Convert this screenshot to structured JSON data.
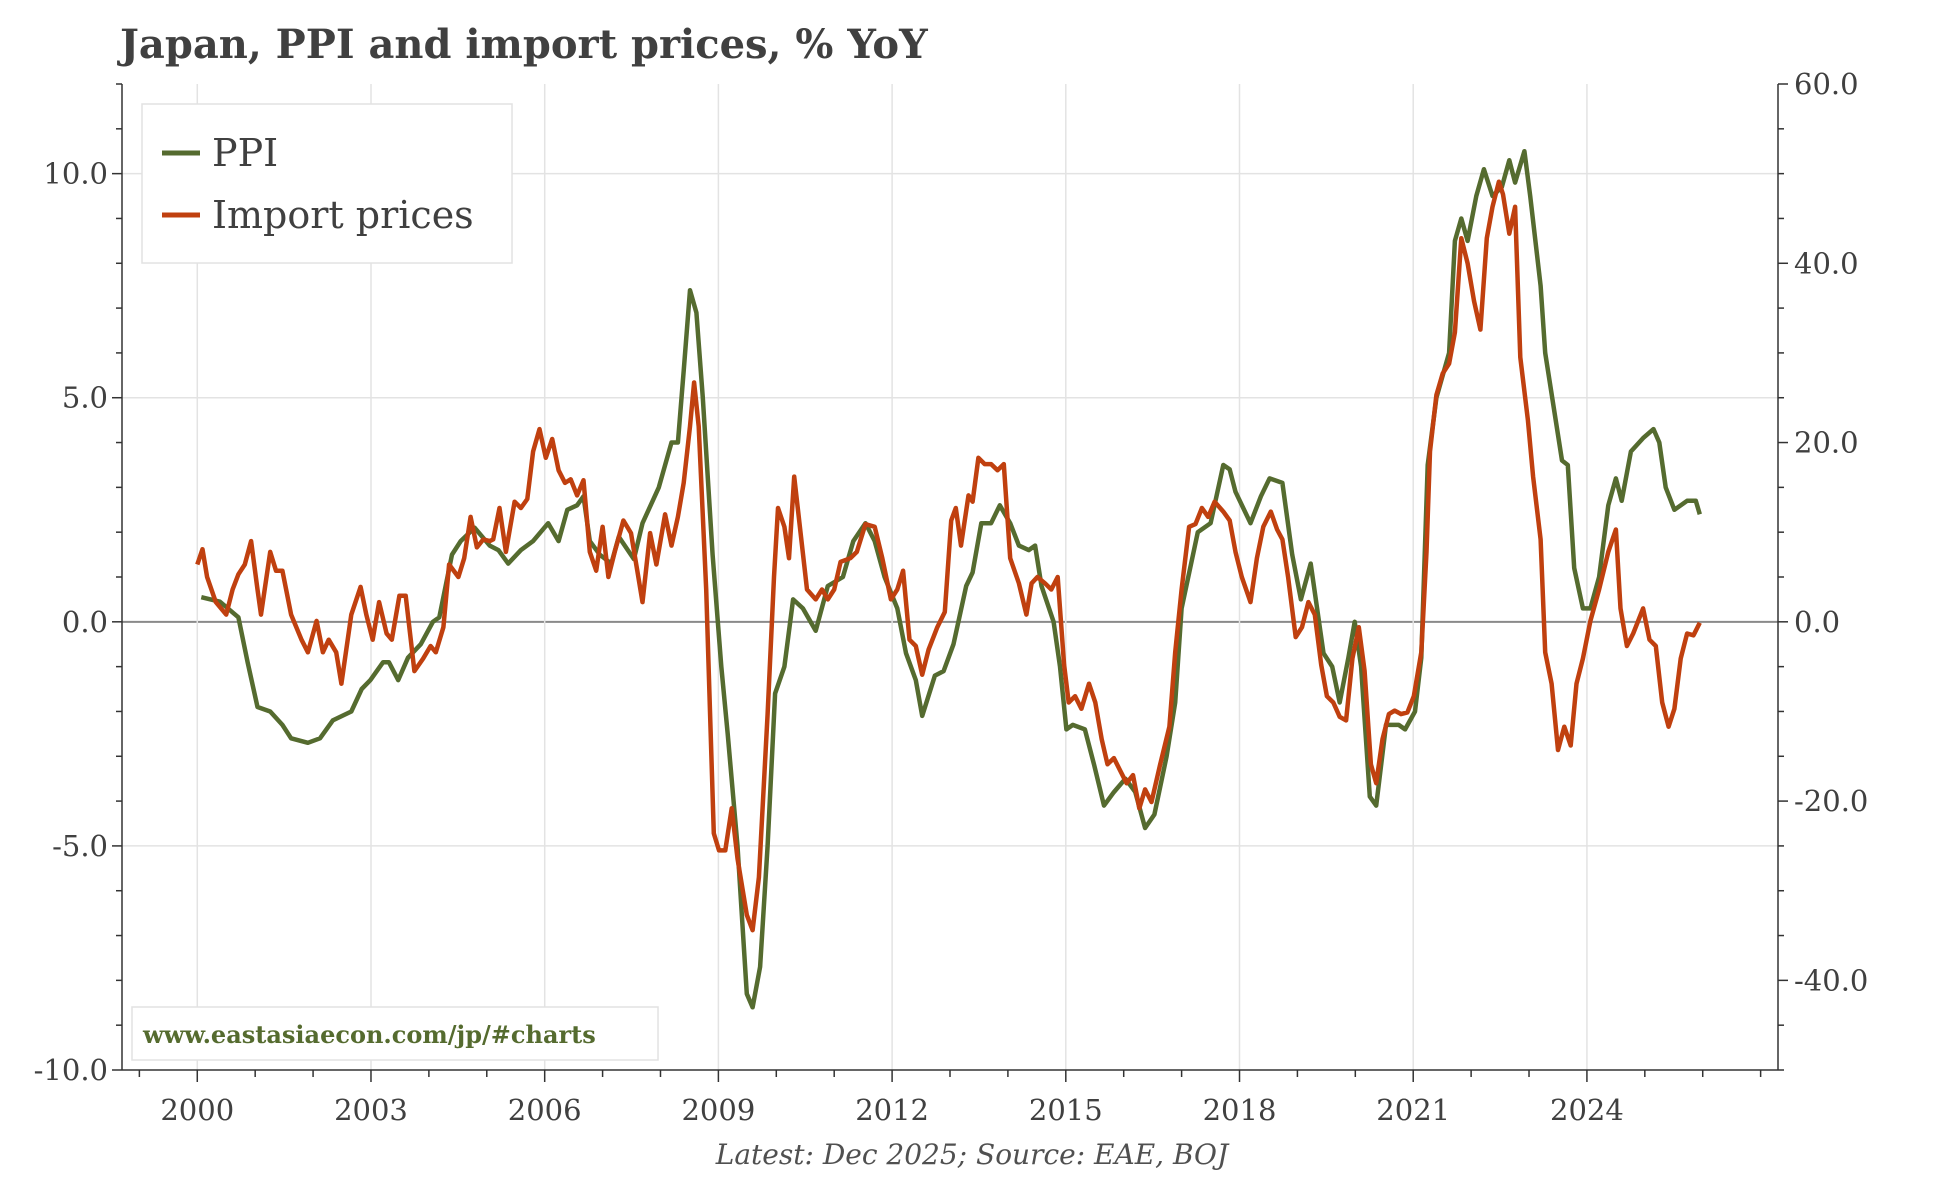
{
  "chart_data": {
    "type": "line",
    "title": "Japan, PPI and import prices, % YoY",
    "footnote": "Latest: Dec 2025; Source: EAE, BOJ",
    "watermark": "www.eastasiaecon.com/jp/#charts",
    "xlim": [
      1998.7,
      2027.3
    ],
    "x_ticks": [
      2000,
      2003,
      2006,
      2009,
      2012,
      2015,
      2018,
      2021,
      2024
    ],
    "x_tick_labels": [
      "2000",
      "2003",
      "2006",
      "2009",
      "2012",
      "2015",
      "2018",
      "2021",
      "2024"
    ],
    "left_axis": {
      "ylim": [
        -10,
        12
      ],
      "ticks": [
        10,
        5,
        0,
        -5,
        -10
      ],
      "tick_labels": [
        "10.0",
        "5.0",
        "0.0",
        "-5.0",
        "-10.0"
      ]
    },
    "right_axis": {
      "ylim": [
        -50,
        60
      ],
      "ticks": [
        60,
        40,
        20,
        0,
        -20,
        -40
      ],
      "tick_labels": [
        "60.0",
        "40.0",
        "20.0",
        "0.0",
        "-20.0",
        "-40.0"
      ]
    },
    "grid": true,
    "legend_position": "top-left",
    "series": [
      {
        "name": "PPI",
        "axis": "left",
        "color": "#556b2f",
        "x": [
          2000.07,
          2000.39,
          2000.71,
          2000.87,
          2001.04,
          2001.26,
          2001.47,
          2001.62,
          2001.91,
          2002.12,
          2002.34,
          2002.66,
          2002.84,
          2002.99,
          2003.21,
          2003.31,
          2003.47,
          2003.64,
          2003.86,
          2004.07,
          2004.18,
          2004.4,
          2004.55,
          2004.79,
          2005.05,
          2005.2,
          2005.37,
          2005.59,
          2005.8,
          2006.06,
          2006.24,
          2006.39,
          2006.56,
          2006.67,
          2006.78,
          2006.95,
          2007.15,
          2007.28,
          2007.54,
          2007.69,
          2007.97,
          2008.19,
          2008.3,
          2008.4,
          2008.51,
          2008.62,
          2008.73,
          2008.9,
          2009.05,
          2009.16,
          2009.33,
          2009.49,
          2009.59,
          2009.72,
          2009.85,
          2009.98,
          2010.14,
          2010.29,
          2010.46,
          2010.68,
          2010.89,
          2011.15,
          2011.33,
          2011.54,
          2011.7,
          2011.87,
          2012.09,
          2012.24,
          2012.41,
          2012.52,
          2012.74,
          2012.89,
          2013.06,
          2013.28,
          2013.39,
          2013.54,
          2013.71,
          2013.86,
          2014.04,
          2014.19,
          2014.36,
          2014.47,
          2014.58,
          2014.79,
          2014.9,
          2015.01,
          2015.12,
          2015.33,
          2015.49,
          2015.66,
          2015.83,
          2016.03,
          2016.2,
          2016.37,
          2016.53,
          2016.74,
          2016.89,
          2017.0,
          2017.28,
          2017.5,
          2017.72,
          2017.83,
          2017.93,
          2018.19,
          2018.37,
          2018.52,
          2018.74,
          2018.91,
          2019.06,
          2019.23,
          2019.45,
          2019.6,
          2019.73,
          2019.88,
          2019.99,
          2020.1,
          2020.25,
          2020.36,
          2020.53,
          2020.75,
          2020.86,
          2021.03,
          2021.14,
          2021.25,
          2021.4,
          2021.62,
          2021.72,
          2021.83,
          2021.94,
          2022.09,
          2022.22,
          2022.37,
          2022.53,
          2022.66,
          2022.76,
          2022.92,
          2023.02,
          2023.2,
          2023.28,
          2023.46,
          2023.57,
          2023.67,
          2023.78,
          2023.93,
          2024.06,
          2024.21,
          2024.37,
          2024.5,
          2024.6,
          2024.76,
          2024.97,
          2025.15,
          2025.25,
          2025.36,
          2025.51,
          2025.73,
          2025.88,
          2025.95
        ],
        "values": [
          0.55,
          0.45,
          0.1,
          -0.9,
          -1.9,
          -2.0,
          -2.3,
          -2.6,
          -2.7,
          -2.6,
          -2.2,
          -2.0,
          -1.5,
          -1.3,
          -0.9,
          -0.9,
          -1.3,
          -0.8,
          -0.5,
          0.0,
          0.1,
          1.5,
          1.8,
          2.1,
          1.7,
          1.6,
          1.3,
          1.6,
          1.8,
          2.2,
          1.8,
          2.5,
          2.6,
          2.8,
          1.8,
          1.5,
          1.3,
          1.9,
          1.4,
          2.2,
          3.0,
          4.0,
          4.0,
          5.6,
          7.4,
          6.9,
          5.0,
          1.5,
          -1.0,
          -2.5,
          -5.0,
          -8.3,
          -8.6,
          -7.7,
          -5.0,
          -1.6,
          -1.0,
          0.5,
          0.3,
          -0.2,
          0.8,
          1.0,
          1.8,
          2.2,
          1.8,
          1.0,
          0.3,
          -0.7,
          -1.3,
          -2.1,
          -1.2,
          -1.1,
          -0.5,
          0.8,
          1.1,
          2.2,
          2.2,
          2.6,
          2.2,
          1.7,
          1.6,
          1.7,
          0.8,
          0.0,
          -1.0,
          -2.4,
          -2.3,
          -2.4,
          -3.2,
          -4.1,
          -3.8,
          -3.5,
          -3.8,
          -4.6,
          -4.3,
          -3.0,
          -1.8,
          0.3,
          2.0,
          2.2,
          3.5,
          3.4,
          2.9,
          2.2,
          2.8,
          3.2,
          3.1,
          1.5,
          0.5,
          1.3,
          -0.7,
          -1.0,
          -1.8,
          -0.8,
          0.0,
          -1.0,
          -3.9,
          -4.1,
          -2.3,
          -2.3,
          -2.4,
          -2.0,
          -0.8,
          3.5,
          5.0,
          6.0,
          8.5,
          9.0,
          8.5,
          9.5,
          10.1,
          9.5,
          9.7,
          10.3,
          9.8,
          10.5,
          9.5,
          7.5,
          6.0,
          4.5,
          3.6,
          3.5,
          1.2,
          0.3,
          0.3,
          1.0,
          2.6,
          3.2,
          2.7,
          3.8,
          4.1,
          4.3,
          4.0,
          3.0,
          2.5,
          2.7,
          2.7,
          2.4
        ]
      },
      {
        "name": "Import prices",
        "axis": "right",
        "color": "#c0400f",
        "x": [
          2000.0,
          2000.09,
          2000.17,
          2000.32,
          2000.5,
          2000.61,
          2000.71,
          2000.82,
          2000.93,
          2001.04,
          2001.1,
          2001.26,
          2001.36,
          2001.47,
          2001.62,
          2001.8,
          2001.91,
          2002.06,
          2002.17,
          2002.27,
          2002.4,
          2002.49,
          2002.66,
          2002.82,
          2002.92,
          2003.03,
          2003.14,
          2003.27,
          2003.36,
          2003.49,
          2003.6,
          2003.75,
          2003.9,
          2004.03,
          2004.12,
          2004.25,
          2004.35,
          2004.51,
          2004.61,
          2004.72,
          2004.83,
          2004.94,
          2005.05,
          2005.11,
          2005.22,
          2005.33,
          2005.48,
          2005.59,
          2005.7,
          2005.8,
          2005.91,
          2006.02,
          2006.13,
          2006.24,
          2006.35,
          2006.45,
          2006.56,
          2006.67,
          2006.78,
          2006.89,
          2007.0,
          2007.1,
          2007.21,
          2007.36,
          2007.49,
          2007.6,
          2007.69,
          2007.82,
          2007.93,
          2008.08,
          2008.19,
          2008.3,
          2008.4,
          2008.51,
          2008.58,
          2008.66,
          2008.79,
          2008.92,
          2009.01,
          2009.12,
          2009.23,
          2009.33,
          2009.49,
          2009.59,
          2009.7,
          2009.85,
          2009.96,
          2010.03,
          2010.14,
          2010.22,
          2010.31,
          2010.42,
          2010.53,
          2010.68,
          2010.79,
          2010.89,
          2011.0,
          2011.11,
          2011.28,
          2011.39,
          2011.54,
          2011.7,
          2011.83,
          2011.98,
          2012.09,
          2012.19,
          2012.3,
          2012.41,
          2012.52,
          2012.63,
          2012.78,
          2012.91,
          2013.02,
          2013.1,
          2013.19,
          2013.32,
          2013.39,
          2013.49,
          2013.6,
          2013.71,
          2013.82,
          2013.93,
          2014.04,
          2014.19,
          2014.32,
          2014.41,
          2014.51,
          2014.64,
          2014.75,
          2014.86,
          2014.97,
          2015.05,
          2015.16,
          2015.27,
          2015.4,
          2015.51,
          2015.62,
          2015.72,
          2015.83,
          2015.94,
          2016.05,
          2016.16,
          2016.27,
          2016.37,
          2016.48,
          2016.63,
          2016.79,
          2016.89,
          2017.0,
          2017.13,
          2017.24,
          2017.35,
          2017.46,
          2017.57,
          2017.72,
          2017.83,
          2017.93,
          2018.04,
          2018.19,
          2018.3,
          2018.41,
          2018.54,
          2018.65,
          2018.74,
          2018.84,
          2018.97,
          2019.08,
          2019.19,
          2019.3,
          2019.41,
          2019.51,
          2019.62,
          2019.73,
          2019.84,
          2019.95,
          2020.06,
          2020.16,
          2020.27,
          2020.36,
          2020.47,
          2020.58,
          2020.68,
          2020.79,
          2020.9,
          2021.01,
          2021.14,
          2021.23,
          2021.29,
          2021.4,
          2021.51,
          2021.62,
          2021.72,
          2021.83,
          2021.94,
          2022.05,
          2022.16,
          2022.27,
          2022.37,
          2022.48,
          2022.55,
          2022.66,
          2022.76,
          2022.85,
          2022.98,
          2023.07,
          2023.2,
          2023.28,
          2023.39,
          2023.5,
          2023.61,
          2023.72,
          2023.82,
          2023.93,
          2024.06,
          2024.21,
          2024.37,
          2024.5,
          2024.58,
          2024.69,
          2024.8,
          2024.97,
          2025.08,
          2025.19,
          2025.3,
          2025.41,
          2025.51,
          2025.62,
          2025.73,
          2025.84,
          2025.95
        ],
        "values": [
          6.4,
          8.1,
          5.0,
          2.2,
          0.8,
          3.6,
          5.3,
          6.4,
          9.0,
          3.6,
          0.8,
          7.8,
          5.7,
          5.7,
          0.8,
          -2.0,
          -3.4,
          0.1,
          -3.4,
          -2.0,
          -3.4,
          -6.9,
          0.8,
          3.9,
          0.8,
          -2.0,
          2.2,
          -1.3,
          -2.0,
          2.9,
          2.9,
          -5.5,
          -4.1,
          -2.7,
          -3.4,
          -0.6,
          6.4,
          5.0,
          7.1,
          11.7,
          8.3,
          9.2,
          9.0,
          9.2,
          12.7,
          7.8,
          13.4,
          12.7,
          13.7,
          19.0,
          21.5,
          18.3,
          20.4,
          16.9,
          15.5,
          15.9,
          14.1,
          15.8,
          7.8,
          5.7,
          10.6,
          5.0,
          7.8,
          11.3,
          9.9,
          5.7,
          2.2,
          9.9,
          6.4,
          12.0,
          8.5,
          11.7,
          15.5,
          21.8,
          26.7,
          21.8,
          3.6,
          -23.6,
          -25.5,
          -25.5,
          -20.8,
          -26.4,
          -32.7,
          -34.4,
          -28.5,
          -10.3,
          5.0,
          12.7,
          10.6,
          7.1,
          16.2,
          9.9,
          3.6,
          2.5,
          3.6,
          2.5,
          3.6,
          6.7,
          7.1,
          7.8,
          10.9,
          10.6,
          7.1,
          2.5,
          3.6,
          5.7,
          -2.0,
          -2.7,
          -5.9,
          -3.1,
          -0.6,
          1.1,
          11.3,
          12.7,
          8.5,
          14.1,
          13.4,
          18.3,
          17.6,
          17.6,
          16.9,
          17.6,
          7.1,
          4.3,
          0.8,
          4.3,
          5.0,
          4.3,
          3.6,
          5.0,
          -4.8,
          -9.0,
          -8.3,
          -9.7,
          -6.9,
          -9.0,
          -13.1,
          -15.9,
          -15.2,
          -16.6,
          -18.0,
          -17.1,
          -20.8,
          -18.7,
          -20.1,
          -15.9,
          -11.7,
          -3.4,
          3.6,
          10.6,
          10.9,
          12.7,
          11.7,
          13.4,
          12.3,
          11.3,
          7.8,
          5.0,
          2.2,
          7.1,
          10.6,
          12.3,
          10.3,
          9.2,
          5.0,
          -1.7,
          -0.6,
          2.2,
          0.8,
          -4.8,
          -8.3,
          -9.0,
          -10.6,
          -11.0,
          -4.1,
          -0.6,
          -5.5,
          -15.9,
          -18.0,
          -13.1,
          -10.3,
          -9.9,
          -10.3,
          -10.1,
          -8.3,
          -3.4,
          7.8,
          19.0,
          25.3,
          27.7,
          28.8,
          32.3,
          42.8,
          40.0,
          35.8,
          32.6,
          42.8,
          46.3,
          49.1,
          47.7,
          43.3,
          46.3,
          29.5,
          22.5,
          16.2,
          9.2,
          -3.4,
          -6.9,
          -14.3,
          -11.7,
          -13.8,
          -6.9,
          -4.1,
          0.1,
          3.6,
          7.8,
          10.3,
          1.5,
          -2.7,
          -1.3,
          1.5,
          -2.0,
          -2.7,
          -9.0,
          -11.7,
          -9.7,
          -4.1,
          -1.3,
          -1.5,
          -0.1
        ]
      }
    ]
  }
}
